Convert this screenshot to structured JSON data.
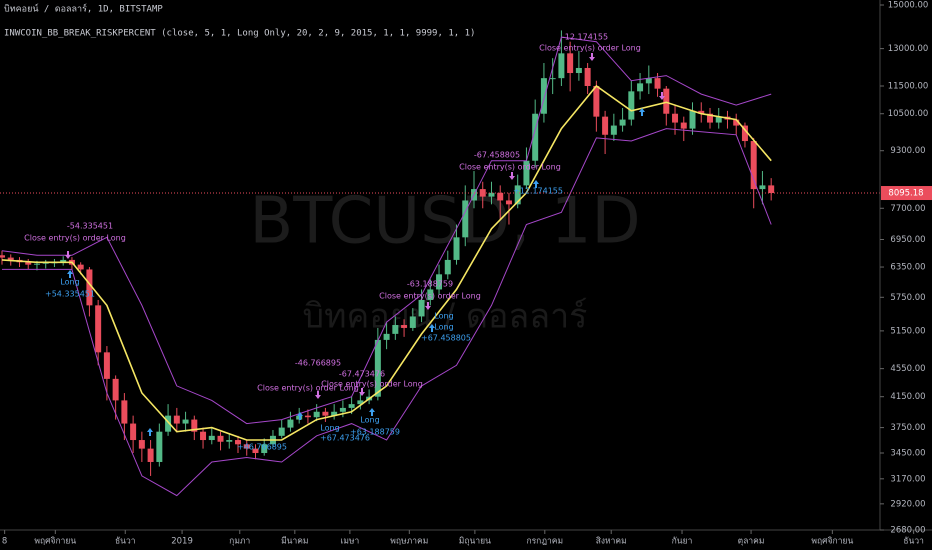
{
  "chart_data": {
    "type": "candlestick",
    "title": "บิทคอยน์ / ดอลลาร์, 1D, BITSTAMP",
    "subtitle": "INWCOIN_BB_BREAK_RISKPERCENT (close, 5, 1, Long Only, 20, 2, 9, 2015, 1, 1, 9999, 1, 1)",
    "watermark": "BTCUSD, 1D",
    "watermark_subtitle": "บิทคอยน์ / ดอลลาร์",
    "log_scale": true,
    "grid": false,
    "up_color": "#53b987",
    "down_color": "#eb4d5c",
    "ylim": [
      2680,
      15000
    ],
    "xlim": [
      -0.23,
      106.4
    ],
    "yticks": [
      {
        "value": 2680,
        "label": "2680.00"
      },
      {
        "value": 2920,
        "label": "2920.00"
      },
      {
        "value": 3170,
        "label": "3170.00"
      },
      {
        "value": 3450,
        "label": "3450.00"
      },
      {
        "value": 3750,
        "label": "3750.00"
      },
      {
        "value": 4150,
        "label": "4150.00"
      },
      {
        "value": 4550,
        "label": "4550.00"
      },
      {
        "value": 5150,
        "label": "5150.00"
      },
      {
        "value": 5750,
        "label": "5750.00"
      },
      {
        "value": 6350,
        "label": "6350.00"
      },
      {
        "value": 6950,
        "label": "6950.00"
      },
      {
        "value": 7700,
        "label": "7700.00"
      },
      {
        "value": 9300,
        "label": "9300.00"
      },
      {
        "value": 10500,
        "label": "10500.00"
      },
      {
        "value": 11500,
        "label": "11500.00"
      },
      {
        "value": 13000,
        "label": "13000.00"
      },
      {
        "value": 15000,
        "label": "15000.00"
      }
    ],
    "xticks": [
      {
        "value": 0.3,
        "label": "8"
      },
      {
        "value": 6.1,
        "label": "พฤศจิกายน"
      },
      {
        "value": 14.1,
        "label": "ธันวา"
      },
      {
        "value": 20.6,
        "label": "2019"
      },
      {
        "value": 27.2,
        "label": "กุมภา"
      },
      {
        "value": 33.5,
        "label": "มีนาคม"
      },
      {
        "value": 39.8,
        "label": "เมษา"
      },
      {
        "value": 46.6,
        "label": "พฤษภาคม"
      },
      {
        "value": 54.1,
        "label": "มิถุนายน"
      },
      {
        "value": 62.1,
        "label": "กรกฎาคม"
      },
      {
        "value": 69.7,
        "label": "สิงหาคม"
      },
      {
        "value": 77.8,
        "label": "กันยา"
      },
      {
        "value": 85.7,
        "label": "ตุลาคม"
      },
      {
        "value": 95,
        "label": "พฤศจิกายน"
      },
      {
        "value": 104.3,
        "label": "ธันวา"
      }
    ],
    "last_price": 8095.18,
    "last_price_color": "#eb4d5c",
    "open": [
      6600,
      6550,
      6500,
      6450,
      6400,
      6420,
      6450,
      6450,
      6500,
      6400,
      6300,
      5600,
      4800,
      4400,
      4100,
      3800,
      3600,
      3500,
      3350,
      3700,
      3900,
      3800,
      3850,
      3700,
      3600,
      3650,
      3580,
      3600,
      3550,
      3500,
      3450,
      3550,
      3650,
      3750,
      3850,
      3900,
      3880,
      3950,
      3900,
      3950,
      4000,
      4050,
      4100,
      4150,
      5000,
      5100,
      5250,
      5200,
      5400,
      5700,
      5900,
      6200,
      6500,
      7000,
      7900,
      8200,
      8000,
      8100,
      7900,
      7800,
      8300,
      9000,
      10500,
      11800,
      11800,
      12800,
      12000,
      12200,
      11500,
      10400,
      9800,
      10100,
      10300,
      11300,
      11600,
      11800,
      11400,
      10500,
      10200,
      10000,
      10600,
      10500,
      10200,
      10400,
      10300,
      10100,
      9600,
      8200,
      8300
    ],
    "high": [
      6700,
      6620,
      6560,
      6520,
      6480,
      6500,
      6520,
      6580,
      6560,
      6450,
      6350,
      5700,
      4900,
      4450,
      4200,
      3900,
      3700,
      3600,
      3800,
      4050,
      4000,
      3950,
      3900,
      3750,
      3750,
      3700,
      3680,
      3650,
      3600,
      3550,
      3620,
      3720,
      3850,
      3950,
      4000,
      3980,
      4050,
      4000,
      4050,
      4100,
      4150,
      4200,
      4250,
      5200,
      5300,
      5400,
      5350,
      5550,
      5900,
      6100,
      6400,
      6700,
      7300,
      8300,
      8700,
      8400,
      8400,
      8300,
      8100,
      8600,
      9400,
      11000,
      12400,
      12600,
      13800,
      13300,
      12900,
      12400,
      11700,
      10600,
      10500,
      10700,
      11700,
      12000,
      12300,
      12000,
      11500,
      10800,
      10400,
      10900,
      10900,
      10700,
      10700,
      10600,
      10500,
      10200,
      9700,
      8700,
      8500
    ],
    "low": [
      6400,
      6380,
      6350,
      6300,
      6280,
      6320,
      6350,
      6380,
      6300,
      6200,
      5400,
      4600,
      4100,
      3850,
      3600,
      3450,
      3350,
      3200,
      3300,
      3650,
      3700,
      3700,
      3600,
      3500,
      3550,
      3480,
      3500,
      3450,
      3420,
      3380,
      3420,
      3520,
      3620,
      3700,
      3800,
      3800,
      3830,
      3820,
      3850,
      3880,
      3920,
      3980,
      4050,
      4100,
      4850,
      5000,
      5050,
      5150,
      5300,
      5600,
      5800,
      6100,
      6400,
      6800,
      7700,
      7700,
      7800,
      7400,
      7300,
      7700,
      8200,
      8800,
      10200,
      11200,
      11500,
      11300,
      11700,
      11200,
      9900,
      9200,
      9600,
      9900,
      10100,
      11000,
      11200,
      11100,
      10100,
      9800,
      9600,
      9800,
      10200,
      10000,
      10000,
      10000,
      9800,
      9400,
      7700,
      7800,
      7900
    ],
    "close": [
      6550,
      6500,
      6450,
      6400,
      6420,
      6450,
      6450,
      6500,
      6400,
      6300,
      5600,
      4800,
      4400,
      4100,
      3800,
      3600,
      3500,
      3350,
      3700,
      3900,
      3800,
      3850,
      3700,
      3600,
      3650,
      3580,
      3600,
      3550,
      3500,
      3450,
      3550,
      3650,
      3750,
      3850,
      3900,
      3880,
      3950,
      3900,
      3950,
      4000,
      4050,
      4100,
      4150,
      5000,
      5100,
      5250,
      5200,
      5400,
      5700,
      5900,
      6200,
      6500,
      7000,
      7900,
      8200,
      8000,
      8100,
      7900,
      7800,
      8300,
      9000,
      10500,
      11800,
      11800,
      12800,
      12000,
      12200,
      11500,
      10400,
      9800,
      10100,
      10300,
      11300,
      11600,
      11800,
      11400,
      10500,
      10200,
      10000,
      10600,
      10500,
      10200,
      10400,
      10300,
      10100,
      9600,
      8200,
      8300,
      8095.18
    ],
    "bands": {
      "x": [
        0,
        4,
        8,
        12,
        16,
        20,
        24,
        28,
        32,
        36,
        40,
        44,
        48,
        52,
        56,
        60,
        64,
        68,
        72,
        76,
        80,
        84,
        88
      ],
      "series": [
        {
          "color": "#f5e663",
          "values": [
            6500,
            6450,
            6450,
            5600,
            4200,
            3700,
            3750,
            3600,
            3600,
            3850,
            3950,
            4300,
            5100,
            5900,
            7200,
            8100,
            10000,
            11500,
            10600,
            10900,
            10500,
            10300,
            9000
          ]
        },
        {
          "color": "#a547c9",
          "values": [
            6700,
            6600,
            6600,
            7000,
            5600,
            4300,
            4100,
            3800,
            3850,
            4000,
            4150,
            5300,
            5800,
            7200,
            9000,
            9000,
            13500,
            13300,
            11700,
            11900,
            11200,
            10800,
            11200
          ]
        },
        {
          "color": "#a547c9",
          "values": [
            6300,
            6300,
            6300,
            4200,
            3200,
            3000,
            3350,
            3400,
            3350,
            3650,
            3800,
            3600,
            4300,
            4600,
            5600,
            7300,
            7600,
            9700,
            9600,
            10000,
            9900,
            9800,
            7300
          ]
        }
      ]
    },
    "annotations": [
      "-54.335451",
      "Close entry(s) order Long",
      "Long",
      "+54.335451",
      "-46.766895",
      "Close entry(s) order Long",
      "Long",
      "+46.766895",
      "-67.473476",
      "Close entry(s) order Long",
      "Long",
      "+67.473476",
      "-63.188759",
      "Close entry(s) order Long",
      "Long",
      "+63.188759",
      "-67.458805",
      "Close entry(s) order Long",
      "Long",
      "+67.458805",
      "-12.174155",
      "Close entry(s) order Long",
      "+12.174155"
    ]
  }
}
